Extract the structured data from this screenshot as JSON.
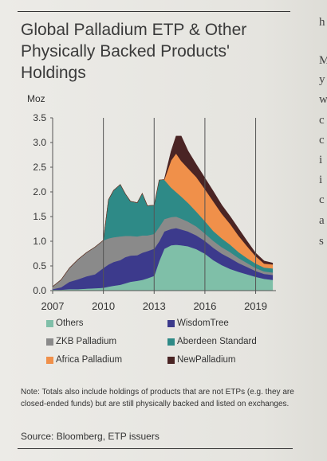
{
  "title_lines": [
    "Global Palladium ETP & Other",
    "Physically Backed Products'",
    "Holdings"
  ],
  "note": "Note: Totals also include holdings of products that are not ETPs (e.g. they are closed-ended funds) but are still physically backed and listed on exchanges.",
  "source": "Source: Bloomberg, ETP issuers",
  "right_column_letters": [
    "h",
    "M",
    "y",
    "w",
    "c",
    "c",
    "i",
    "i",
    "c",
    "a",
    "s"
  ],
  "chart_data": {
    "type": "area",
    "stacked": true,
    "ylabel": "Moz",
    "ylim": [
      0,
      3.5
    ],
    "yticks": [
      "0.0",
      "0.5",
      "1.0",
      "1.5",
      "2.0",
      "2.5",
      "3.0",
      "3.5"
    ],
    "xlim": [
      2007,
      2020.2
    ],
    "xticks": [
      "2007",
      "2010",
      "2013",
      "2016",
      "2019"
    ],
    "vertical_lines": [
      2010,
      2013,
      2016,
      2019
    ],
    "x": [
      2007.0,
      2007.5,
      2008.0,
      2008.5,
      2009.0,
      2009.5,
      2010.0,
      2010.3,
      2010.6,
      2011.0,
      2011.3,
      2011.6,
      2012.0,
      2012.3,
      2012.6,
      2013.0,
      2013.3,
      2013.6,
      2014.0,
      2014.3,
      2014.6,
      2015.0,
      2015.5,
      2016.0,
      2016.5,
      2017.0,
      2017.5,
      2018.0,
      2018.5,
      2019.0,
      2019.5,
      2020.0
    ],
    "series": [
      {
        "name": "Others",
        "color": "#7fbfa8",
        "values": [
          0.02,
          0.02,
          0.03,
          0.03,
          0.04,
          0.05,
          0.06,
          0.08,
          0.1,
          0.12,
          0.15,
          0.18,
          0.2,
          0.22,
          0.25,
          0.3,
          0.6,
          0.85,
          0.92,
          0.93,
          0.92,
          0.9,
          0.84,
          0.75,
          0.62,
          0.52,
          0.44,
          0.38,
          0.33,
          0.28,
          0.24,
          0.22
        ]
      },
      {
        "name": "WisdomTree",
        "color": "#3c3a8c",
        "values": [
          0.01,
          0.05,
          0.15,
          0.2,
          0.25,
          0.28,
          0.4,
          0.45,
          0.48,
          0.5,
          0.53,
          0.53,
          0.52,
          0.55,
          0.55,
          0.55,
          0.4,
          0.35,
          0.33,
          0.34,
          0.32,
          0.3,
          0.28,
          0.26,
          0.25,
          0.23,
          0.22,
          0.18,
          0.15,
          0.12,
          0.1,
          0.1
        ]
      },
      {
        "name": "ZKB Palladium",
        "color": "#8a8a8a",
        "values": [
          0.05,
          0.15,
          0.28,
          0.4,
          0.48,
          0.55,
          0.56,
          0.53,
          0.5,
          0.48,
          0.43,
          0.4,
          0.38,
          0.35,
          0.32,
          0.3,
          0.29,
          0.25,
          0.24,
          0.23,
          0.22,
          0.2,
          0.18,
          0.15,
          0.14,
          0.13,
          0.12,
          0.1,
          0.08,
          0.06,
          0.05,
          0.05
        ]
      },
      {
        "name": "Aberdeen Standard",
        "color": "#2e8a87",
        "values": [
          0.0,
          0.0,
          0.0,
          0.0,
          0.0,
          0.0,
          0.0,
          0.78,
          0.95,
          1.05,
          0.85,
          0.7,
          0.68,
          0.85,
          0.6,
          0.58,
          0.95,
          0.8,
          0.6,
          0.5,
          0.45,
          0.38,
          0.3,
          0.25,
          0.2,
          0.18,
          0.15,
          0.12,
          0.1,
          0.09,
          0.08,
          0.08
        ]
      },
      {
        "name": "Africa Palladium",
        "color": "#f0904a",
        "values": [
          0.0,
          0.0,
          0.0,
          0.0,
          0.0,
          0.0,
          0.0,
          0.0,
          0.0,
          0.0,
          0.0,
          0.0,
          0.0,
          0.0,
          0.0,
          0.0,
          0.0,
          0.0,
          0.55,
          0.78,
          0.72,
          0.7,
          0.7,
          0.65,
          0.6,
          0.5,
          0.42,
          0.33,
          0.24,
          0.15,
          0.08,
          0.08
        ]
      },
      {
        "name": "NewPalladium",
        "color": "#4a2424",
        "values": [
          0.0,
          0.0,
          0.0,
          0.0,
          0.0,
          0.0,
          0.0,
          0.0,
          0.0,
          0.0,
          0.0,
          0.0,
          0.0,
          0.0,
          0.0,
          0.0,
          0.0,
          0.0,
          0.18,
          0.35,
          0.5,
          0.35,
          0.25,
          0.22,
          0.2,
          0.17,
          0.15,
          0.14,
          0.1,
          0.06,
          0.05,
          0.03
        ]
      }
    ],
    "legend_position": "bottom"
  }
}
